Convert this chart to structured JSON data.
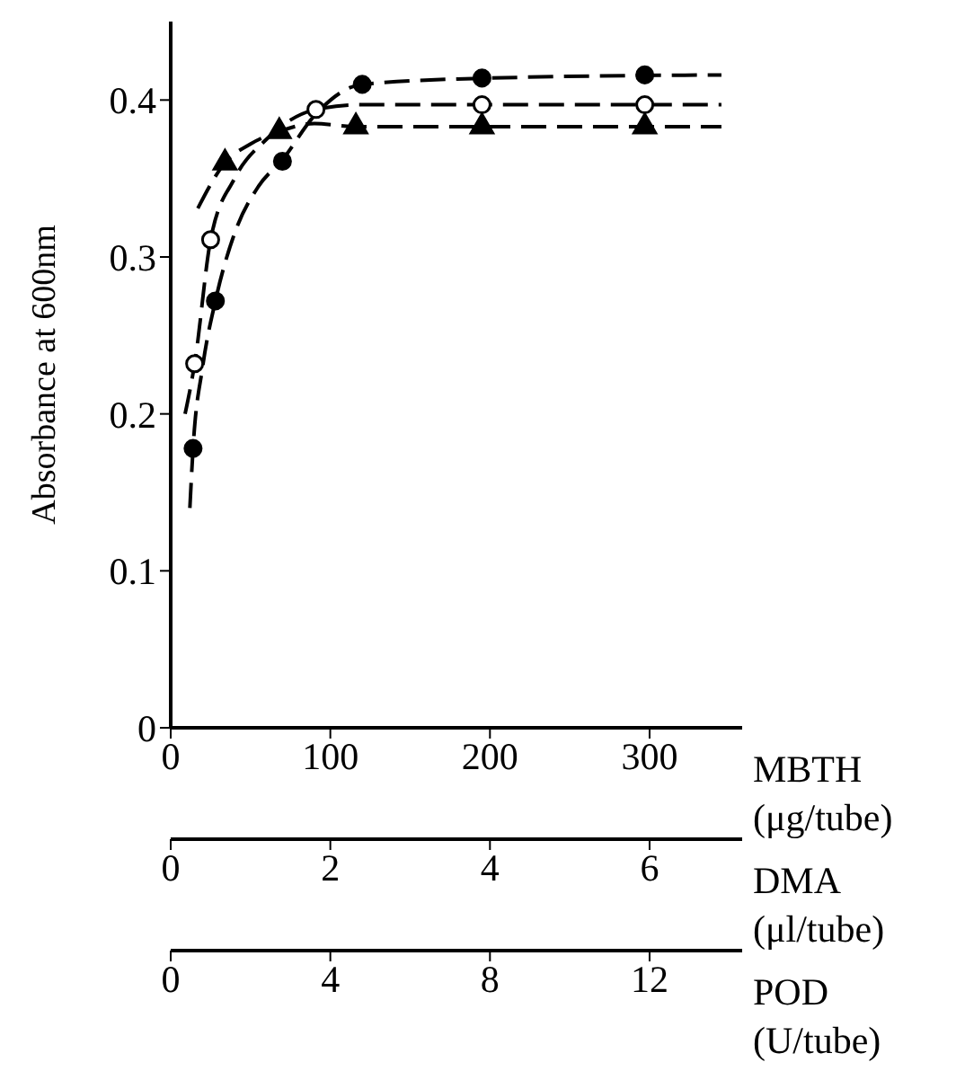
{
  "chart_data": {
    "type": "scatter",
    "ylabel": "Absorbance at 600nm",
    "xlabel": "MBTH (μg/tube)",
    "x2label": "DMA (μl/tube)",
    "annotations": [
      "POD (U/tube)",
      "0",
      "4",
      "8",
      "12"
    ],
    "xlim": [
      0,
      358
    ],
    "xticks": [
      0,
      100,
      200,
      300
    ],
    "x2lim": [
      0,
      7.16
    ],
    "x2ticks": [
      0,
      2,
      4,
      6
    ],
    "ylim": [
      0,
      0.45
    ],
    "yticks": [
      0,
      0.1,
      0.2,
      0.3,
      0.4
    ],
    "grid": false,
    "series": [
      {
        "marker": "circle",
        "color": "#000000",
        "x": [
          14,
          28,
          70,
          120,
          195,
          297
        ],
        "values": [
          0.178,
          0.272,
          0.361,
          0.41,
          0.414,
          0.416
        ]
      },
      {
        "marker": "circle",
        "color": "#ffffff",
        "x": [
          15,
          25,
          91,
          195,
          297
        ],
        "values": [
          0.232,
          0.311,
          0.394,
          0.397,
          0.397
        ]
      },
      {
        "marker": "triangle",
        "color": "#000000",
        "x": [
          34,
          68,
          116,
          195,
          297
        ],
        "values": [
          0.36,
          0.38,
          0.383,
          0.383,
          0.383
        ]
      },
      {
        "type": "line",
        "line_style": "dashed",
        "marker": "none",
        "color": "#000000",
        "x": [
          12,
          14,
          20,
          28,
          40,
          55,
          70,
          90,
          120,
          200,
          345
        ],
        "values": [
          0.14,
          0.178,
          0.23,
          0.272,
          0.315,
          0.345,
          0.362,
          0.39,
          0.41,
          0.414,
          0.416
        ]
      },
      {
        "type": "line",
        "line_style": "dashed",
        "marker": "none",
        "color": "#000000",
        "x": [
          9,
          15,
          25,
          40,
          60,
          91,
          120,
          200,
          345
        ],
        "values": [
          0.2,
          0.232,
          0.311,
          0.35,
          0.375,
          0.394,
          0.397,
          0.397,
          0.397
        ]
      },
      {
        "type": "line",
        "line_style": "dashed",
        "marker": "none",
        "color": "#000000",
        "x": [
          17,
          34,
          50,
          68,
          90,
          116,
          200,
          345
        ],
        "values": [
          0.331,
          0.36,
          0.372,
          0.38,
          0.385,
          0.383,
          0.383,
          0.383
        ]
      }
    ]
  }
}
